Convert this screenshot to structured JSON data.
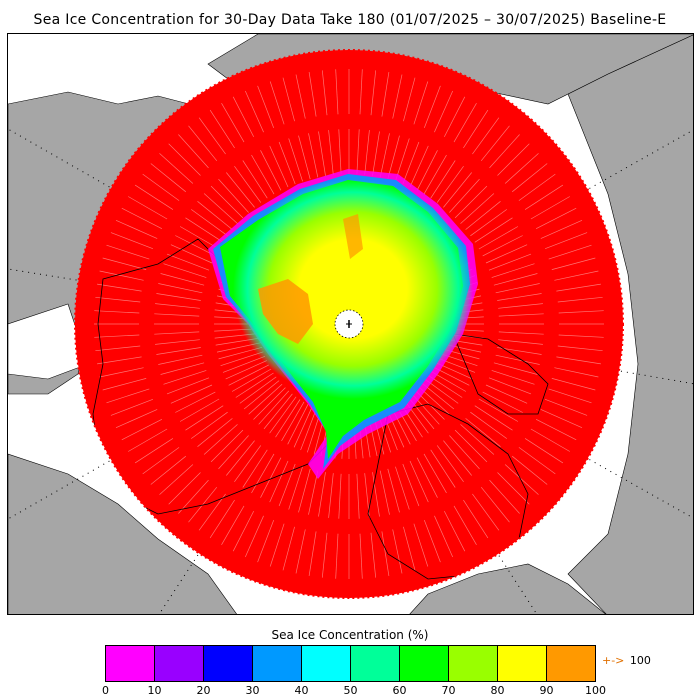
{
  "title": "Sea Ice Concentration for 30-Day Data Take 180 (01/07/2025 – 30/07/2025) Baseline-E",
  "legend": {
    "title": "Sea Ice Concentration (%)",
    "ticks": [
      "0",
      "10",
      "20",
      "30",
      "40",
      "50",
      "60",
      "70",
      "80",
      "90",
      "100"
    ],
    "colors": [
      "#ff00ff",
      "#9900ff",
      "#0000ff",
      "#0099ff",
      "#00ffff",
      "#00ff99",
      "#00ff00",
      "#99ff00",
      "#ffff00",
      "#ff9900"
    ],
    "overflow_arrow": "+->",
    "overflow_label": "100"
  },
  "map": {
    "projection": "north-polar-stereographic",
    "ocean_no_data_color": "#ff0000",
    "land_color": "#a6a6a6",
    "outside_swath_color": "#ffffff",
    "pole_hole_color": "#ffffff",
    "icons": [
      "pole-hole-icon"
    ]
  }
}
